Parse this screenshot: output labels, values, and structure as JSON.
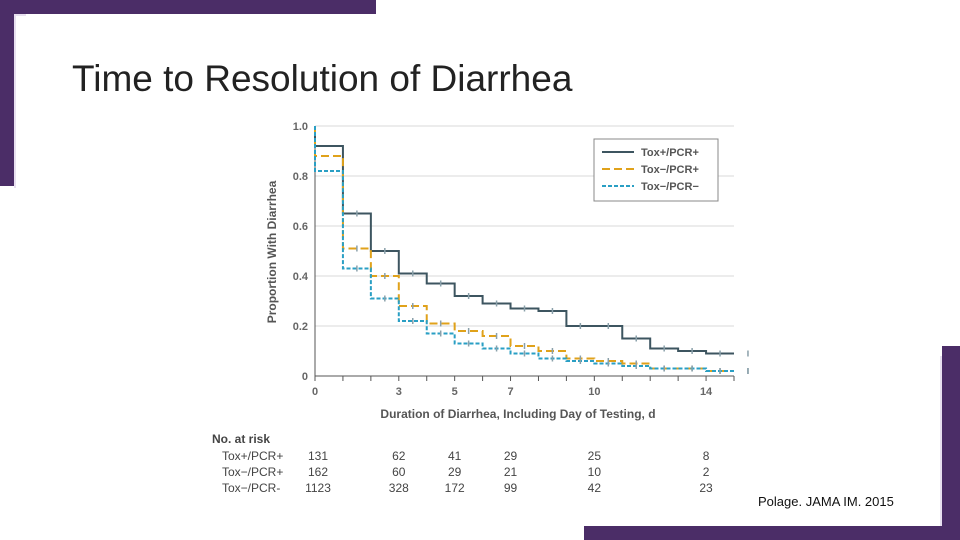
{
  "slide": {
    "title": "Time to Resolution of Diarrhea",
    "citation": "Polage. JAMA IM. 2015"
  },
  "colors": {
    "accent": "#4b2d67",
    "tox_pos_pcr_pos": "#3d5560",
    "tox_neg_pcr_pos": "#e0a21b",
    "tox_neg_pcr_neg": "#2a9fc4"
  },
  "chart_data": {
    "type": "line",
    "subtype": "step (Kaplan-Meier)",
    "xlabel": "Duration of Diarrhea, Including Day of Testing, d",
    "ylabel": "Proportion With Diarrhea",
    "xlim": [
      0,
      15
    ],
    "ylim": [
      0,
      1.0
    ],
    "xticks": [
      0,
      1,
      2,
      3,
      4,
      5,
      6,
      7,
      8,
      9,
      10,
      11,
      12,
      13,
      14,
      15
    ],
    "xtick_labels": [
      "0",
      "3",
      "5",
      "7",
      "10",
      "14"
    ],
    "xtick_label_values": [
      0,
      3,
      5,
      7,
      10,
      14
    ],
    "yticks": [
      0,
      0.2,
      0.4,
      0.6,
      0.8,
      1.0
    ],
    "ytick_labels": [
      "0",
      "0.2",
      "0.4",
      "0.6",
      "0.8",
      "1.0"
    ],
    "legend_position": "top-right",
    "series": [
      {
        "name": "Tox+/PCR+",
        "style": "solid",
        "x": [
          0,
          1,
          2,
          3,
          4,
          5,
          6,
          7,
          8,
          9,
          10,
          11,
          12,
          13,
          14,
          15
        ],
        "y": [
          0.92,
          0.65,
          0.5,
          0.41,
          0.37,
          0.32,
          0.29,
          0.27,
          0.26,
          0.2,
          0.2,
          0.15,
          0.11,
          0.1,
          0.09,
          0.09
        ]
      },
      {
        "name": "Tox−/PCR+",
        "style": "dashed",
        "x": [
          0,
          1,
          2,
          3,
          4,
          5,
          6,
          7,
          8,
          9,
          10,
          11,
          12,
          13,
          14,
          15
        ],
        "y": [
          0.88,
          0.51,
          0.4,
          0.28,
          0.21,
          0.18,
          0.16,
          0.12,
          0.1,
          0.07,
          0.06,
          0.05,
          0.03,
          0.03,
          0.02,
          0.02
        ]
      },
      {
        "name": "Tox−/PCR−",
        "style": "dotted-dash",
        "x": [
          0,
          1,
          2,
          3,
          4,
          5,
          6,
          7,
          8,
          9,
          10,
          11,
          12,
          13,
          14,
          15
        ],
        "y": [
          0.82,
          0.43,
          0.31,
          0.22,
          0.17,
          0.13,
          0.11,
          0.09,
          0.07,
          0.06,
          0.05,
          0.04,
          0.03,
          0.03,
          0.02,
          0.02
        ]
      }
    ],
    "risk_table": {
      "title": "No. at risk",
      "timepoints": [
        0,
        3,
        5,
        7,
        10,
        14
      ],
      "rows": [
        {
          "label": "Tox+/PCR+",
          "values": [
            "131",
            "62",
            "41",
            "29",
            "25",
            "8"
          ]
        },
        {
          "label": "Tox−/PCR+",
          "values": [
            "162",
            "60",
            "29",
            "21",
            "10",
            "2"
          ]
        },
        {
          "label": "Tox−/PCR-",
          "values": [
            "1123",
            "328",
            "172",
            "99",
            "42",
            "23"
          ]
        }
      ]
    }
  }
}
